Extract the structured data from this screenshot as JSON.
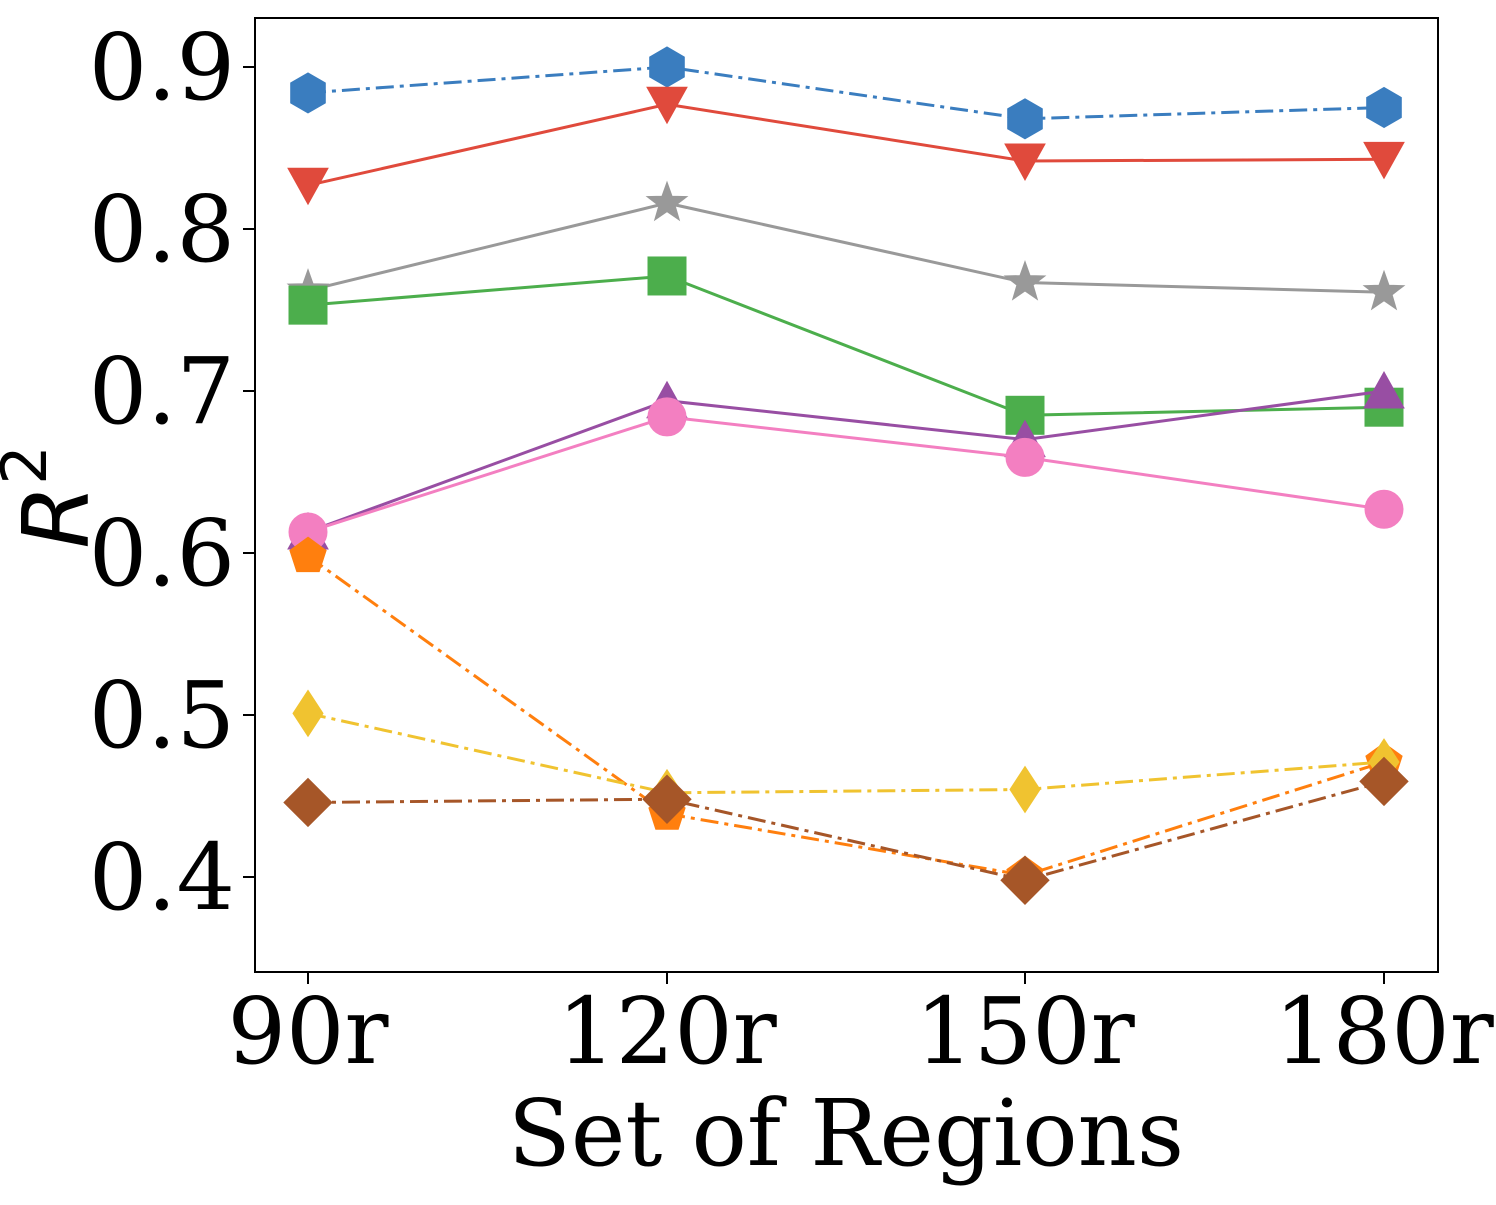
{
  "chart_data": {
    "type": "line",
    "title": "",
    "xlabel": "Set of Regions",
    "ylabel": "R",
    "ylabel_superscript": "2",
    "categories": [
      "90r",
      "120r",
      "150r",
      "180r"
    ],
    "ylim": [
      0.34,
      0.93
    ],
    "yticks": [
      0.4,
      0.5,
      0.6,
      0.7,
      0.8,
      0.9
    ],
    "ytick_labels": [
      "0.4",
      "0.5",
      "0.6",
      "0.7",
      "0.8",
      "0.9"
    ],
    "grid": false,
    "legend": "none",
    "series": [
      {
        "name": "blue-hexagon",
        "color": "#3a7dbf",
        "marker": "hexagon",
        "dash": "dashdot",
        "values": [
          0.884,
          0.9,
          0.868,
          0.875
        ]
      },
      {
        "name": "red-triangle-down",
        "color": "#e04a3c",
        "marker": "triangle-down",
        "dash": "solid",
        "values": [
          0.827,
          0.877,
          0.842,
          0.843
        ]
      },
      {
        "name": "gray-star",
        "color": "#999999",
        "marker": "star",
        "dash": "solid",
        "values": [
          0.762,
          0.816,
          0.767,
          0.761
        ]
      },
      {
        "name": "green-square",
        "color": "#4cae4c",
        "marker": "square",
        "dash": "solid",
        "values": [
          0.753,
          0.771,
          0.685,
          0.69
        ]
      },
      {
        "name": "purple-triangle-up",
        "color": "#984ea3",
        "marker": "triangle-up",
        "dash": "solid",
        "values": [
          0.613,
          0.694,
          0.67,
          0.7
        ]
      },
      {
        "name": "pink-circle",
        "color": "#f37fc1",
        "marker": "circle",
        "dash": "solid",
        "values": [
          0.613,
          0.684,
          0.659,
          0.627
        ]
      },
      {
        "name": "orange-pentagon",
        "color": "#ff7f0e",
        "marker": "pentagon",
        "dash": "dashdot",
        "values": [
          0.598,
          0.439,
          0.401,
          0.471
        ]
      },
      {
        "name": "yellow-thin-diamond",
        "color": "#f0c330",
        "marker": "thin-diamond",
        "dash": "dashdot",
        "values": [
          0.501,
          0.452,
          0.454,
          0.471
        ]
      },
      {
        "name": "brown-diamond",
        "color": "#a65628",
        "marker": "diamond",
        "dash": "dashdot",
        "values": [
          0.446,
          0.448,
          0.398,
          0.459
        ]
      }
    ]
  }
}
